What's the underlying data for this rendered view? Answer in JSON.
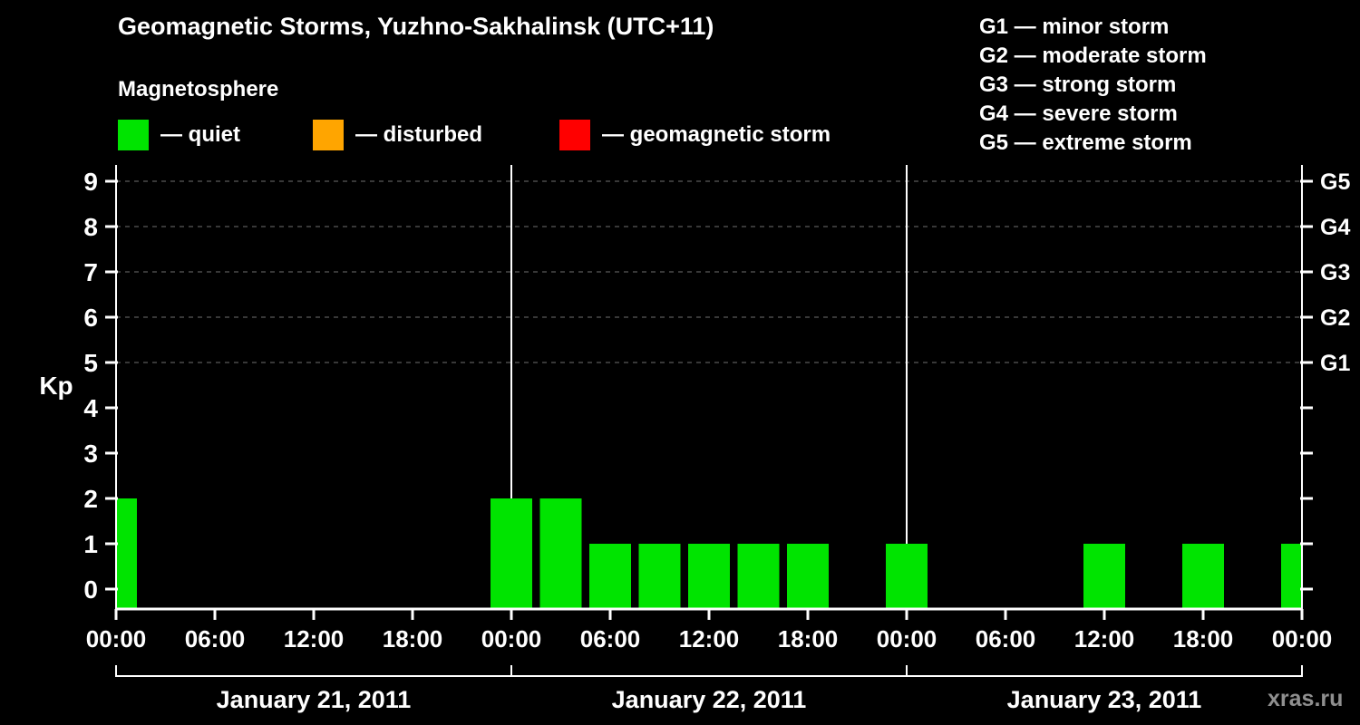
{
  "header": {
    "title": "Geomagnetic Storms, Yuzhno-Sakhalinsk (UTC+11)",
    "subtitle": "Magnetosphere"
  },
  "legend": {
    "quiet": {
      "label": "— quiet",
      "color": "#00e400"
    },
    "disturbed": {
      "label": "— disturbed",
      "color": "#ffa500"
    },
    "storm": {
      "label": "— geomagnetic storm",
      "color": "#ff0000"
    }
  },
  "g_scale": [
    "G1 — minor storm",
    "G2 — moderate storm",
    "G3 — strong storm",
    "G4 — severe storm",
    "G5 — extreme storm"
  ],
  "watermark": "xras.ru",
  "chart_data": {
    "type": "bar",
    "ylabel": "Kp",
    "ylim": [
      -0.45,
      9.4
    ],
    "y_ticks": [
      0,
      1,
      2,
      3,
      4,
      5,
      6,
      7,
      8,
      9
    ],
    "gridlines_at": [
      5,
      6,
      7,
      8,
      9
    ],
    "right_axis_labels": [
      {
        "value": 5,
        "label": "G1"
      },
      {
        "value": 6,
        "label": "G2"
      },
      {
        "value": 7,
        "label": "G3"
      },
      {
        "value": 8,
        "label": "G4"
      },
      {
        "value": 9,
        "label": "G5"
      }
    ],
    "x_hours_total": 72,
    "x_ticks": [
      {
        "hour": 0,
        "label": "00:00"
      },
      {
        "hour": 6,
        "label": "06:00"
      },
      {
        "hour": 12,
        "label": "12:00"
      },
      {
        "hour": 18,
        "label": "18:00"
      },
      {
        "hour": 24,
        "label": "00:00"
      },
      {
        "hour": 30,
        "label": "06:00"
      },
      {
        "hour": 36,
        "label": "12:00"
      },
      {
        "hour": 42,
        "label": "18:00"
      },
      {
        "hour": 48,
        "label": "00:00"
      },
      {
        "hour": 54,
        "label": "06:00"
      },
      {
        "hour": 60,
        "label": "12:00"
      },
      {
        "hour": 66,
        "label": "18:00"
      },
      {
        "hour": 72,
        "label": "00:00"
      }
    ],
    "day_separators_hours": [
      24,
      48
    ],
    "days": [
      {
        "label": "January 21, 2011",
        "start_hour": 0
      },
      {
        "label": "January 22, 2011",
        "start_hour": 24
      },
      {
        "label": "January 23, 2011",
        "start_hour": 48
      }
    ],
    "series": [
      {
        "hour": 0,
        "kp": 2
      },
      {
        "hour": 3,
        "kp": 0
      },
      {
        "hour": 6,
        "kp": 0
      },
      {
        "hour": 9,
        "kp": 0
      },
      {
        "hour": 12,
        "kp": 0
      },
      {
        "hour": 15,
        "kp": 0
      },
      {
        "hour": 18,
        "kp": 0
      },
      {
        "hour": 21,
        "kp": 0
      },
      {
        "hour": 24,
        "kp": 2
      },
      {
        "hour": 27,
        "kp": 2
      },
      {
        "hour": 30,
        "kp": 1
      },
      {
        "hour": 33,
        "kp": 1
      },
      {
        "hour": 36,
        "kp": 1
      },
      {
        "hour": 39,
        "kp": 1
      },
      {
        "hour": 42,
        "kp": 1
      },
      {
        "hour": 45,
        "kp": 0
      },
      {
        "hour": 48,
        "kp": 1
      },
      {
        "hour": 51,
        "kp": 0
      },
      {
        "hour": 54,
        "kp": 0
      },
      {
        "hour": 57,
        "kp": 0
      },
      {
        "hour": 60,
        "kp": 1
      },
      {
        "hour": 63,
        "kp": 0
      },
      {
        "hour": 66,
        "kp": 1
      },
      {
        "hour": 69,
        "kp": 0
      },
      {
        "hour": 72,
        "kp": 1
      }
    ]
  }
}
